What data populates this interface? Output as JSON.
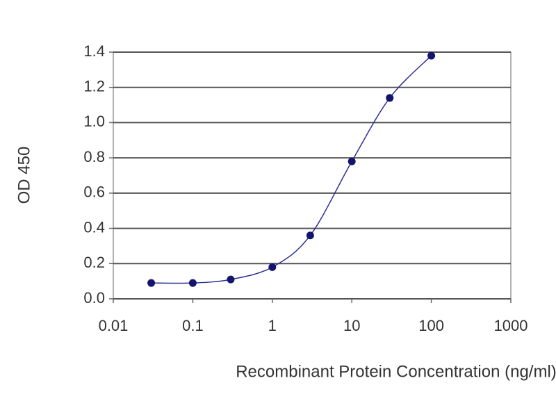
{
  "chart_data": {
    "type": "line",
    "x_label": "Recombinant Protein Concentration (ng/ml)",
    "y_label": "OD 450",
    "x": [
      0.03,
      0.1,
      0.3,
      1,
      3,
      10,
      30,
      100
    ],
    "series": [
      {
        "color": "#2b2f8f",
        "values": [
          0.09,
          0.09,
          0.11,
          0.18,
          0.36,
          0.78,
          1.14,
          1.38
        ]
      }
    ],
    "xscale": "log",
    "xlim": [
      0.01,
      1000
    ],
    "xticks": [
      0.01,
      0.1,
      1,
      10,
      100,
      1000
    ],
    "ylim": [
      0,
      1.4
    ],
    "yticks": [
      {
        "value": 0,
        "label": "0.0"
      },
      0.2,
      0.4,
      0.6,
      0.8,
      {
        "value": 1,
        "label": "1.0"
      },
      1.2,
      1.4
    ],
    "grid": true
  }
}
